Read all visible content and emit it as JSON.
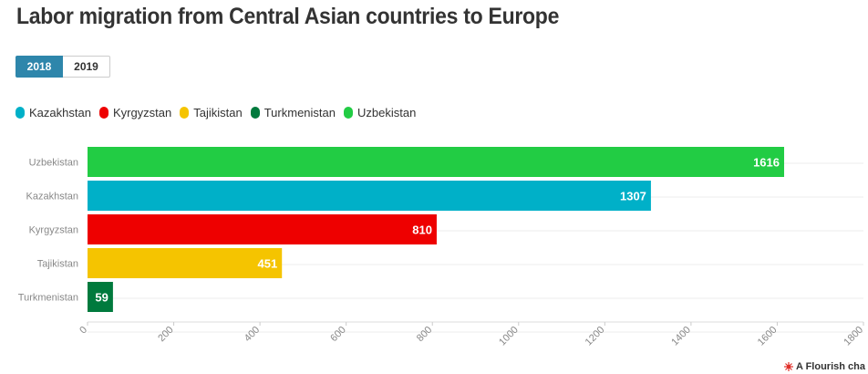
{
  "title": "Labor migration from Central Asian countries to Europe",
  "controls": {
    "options": [
      "2018",
      "2019"
    ],
    "selected": "2018"
  },
  "legend": [
    {
      "label": "Kazakhstan",
      "color": "#00b0c8"
    },
    {
      "label": "Kyrgyzstan",
      "color": "#ee0000"
    },
    {
      "label": "Tajikistan",
      "color": "#f5c400"
    },
    {
      "label": "Turkmenistan",
      "color": "#007a3d"
    },
    {
      "label": "Uzbekistan",
      "color": "#22cc44"
    }
  ],
  "chart_data": {
    "type": "bar",
    "orientation": "horizontal",
    "categories": [
      "Uzbekistan",
      "Kazakhstan",
      "Kyrgyzstan",
      "Tajikistan",
      "Turkmenistan"
    ],
    "values": [
      1616,
      1307,
      810,
      451,
      59
    ],
    "colors": [
      "#22cc44",
      "#00b0c8",
      "#ee0000",
      "#f5c400",
      "#007a3d"
    ],
    "xlim": [
      0,
      1800
    ],
    "xticks": [
      "0",
      "200",
      "400",
      "600",
      "800",
      "1000",
      "1200",
      "1400",
      "1600",
      "1800"
    ],
    "grid": true
  },
  "footer": {
    "credit": "A Flourish cha",
    "icon": "flourish-logo-icon"
  }
}
